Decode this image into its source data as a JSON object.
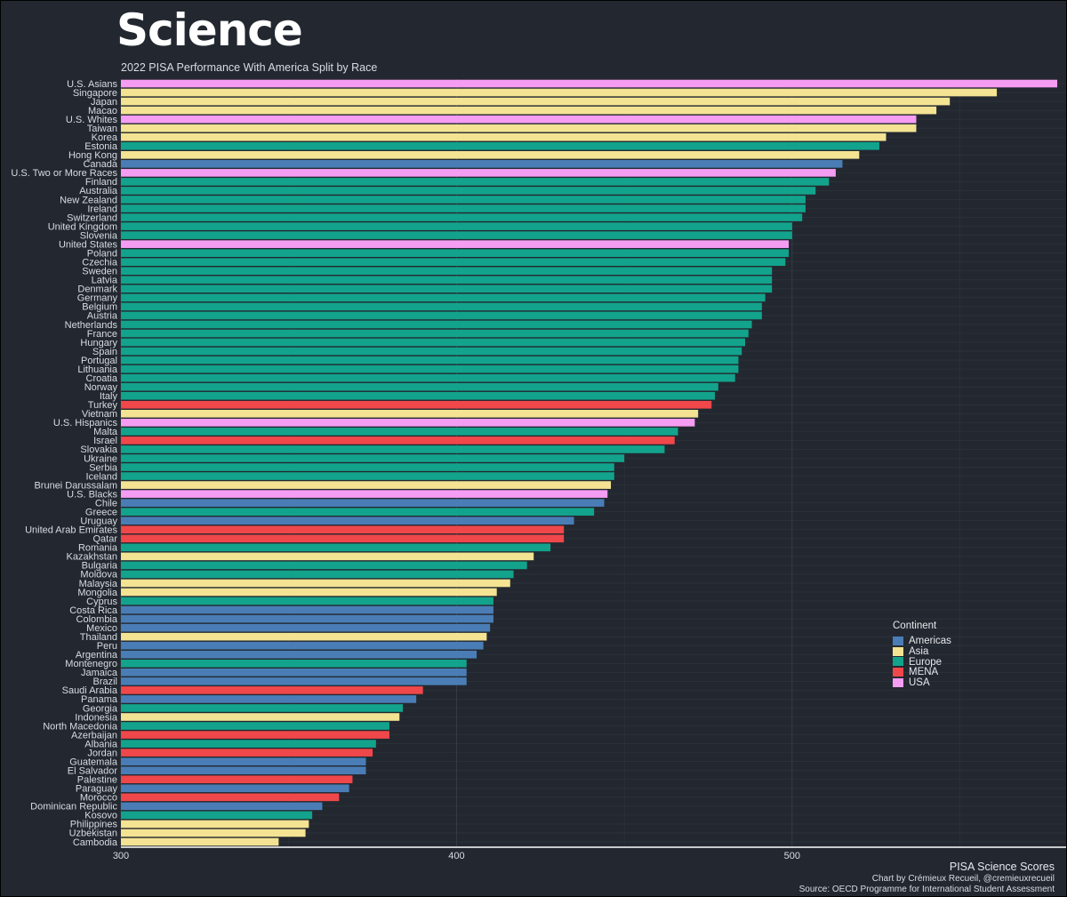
{
  "title": "Science",
  "subtitle": "2022 PISA Performance With America Split by Race",
  "legend_title": "Continent",
  "continent_colors": {
    "Americas": "#4a7db5",
    "Asia": "#f3e392",
    "Europe": "#13a38c",
    "MENA": "#f0474a",
    "USA": "#f59cf3"
  },
  "caption": {
    "main": "PISA Science Scores",
    "credit": "Chart by Crémieux Recueil, @cremieuxrecueil",
    "source": "Source: OECD Programme for International Student Assessment"
  },
  "chart_data": {
    "type": "bar",
    "orientation": "horizontal",
    "title": "Science",
    "subtitle": "2022 PISA Performance With America Split by Race",
    "xlabel": "",
    "ylabel": "",
    "xlim": [
      300,
      579
    ],
    "x_ticks": [
      300,
      400,
      500
    ],
    "grid": true,
    "legend_position": "right",
    "legend_entries": [
      "Americas",
      "Asia",
      "Europe",
      "MENA",
      "USA"
    ],
    "bars": [
      {
        "label": "U.S. Asians",
        "value": 579,
        "group": "USA"
      },
      {
        "label": "Singapore",
        "value": 561,
        "group": "Asia"
      },
      {
        "label": "Japan",
        "value": 547,
        "group": "Asia"
      },
      {
        "label": "Macao",
        "value": 543,
        "group": "Asia"
      },
      {
        "label": "U.S. Whites",
        "value": 537,
        "group": "USA"
      },
      {
        "label": "Taiwan",
        "value": 537,
        "group": "Asia"
      },
      {
        "label": "Korea",
        "value": 528,
        "group": "Asia"
      },
      {
        "label": "Estonia",
        "value": 526,
        "group": "Europe"
      },
      {
        "label": "Hong Kong",
        "value": 520,
        "group": "Asia"
      },
      {
        "label": "Canada",
        "value": 515,
        "group": "Americas"
      },
      {
        "label": "U.S. Two or More Races",
        "value": 513,
        "group": "USA"
      },
      {
        "label": "Finland",
        "value": 511,
        "group": "Europe"
      },
      {
        "label": "Australia",
        "value": 507,
        "group": "Europe"
      },
      {
        "label": "New Zealand",
        "value": 504,
        "group": "Europe"
      },
      {
        "label": "Ireland",
        "value": 504,
        "group": "Europe"
      },
      {
        "label": "Switzerland",
        "value": 503,
        "group": "Europe"
      },
      {
        "label": "United Kingdom",
        "value": 500,
        "group": "Europe"
      },
      {
        "label": "Slovenia",
        "value": 500,
        "group": "Europe"
      },
      {
        "label": "United States",
        "value": 499,
        "group": "USA"
      },
      {
        "label": "Poland",
        "value": 499,
        "group": "Europe"
      },
      {
        "label": "Czechia",
        "value": 498,
        "group": "Europe"
      },
      {
        "label": "Sweden",
        "value": 494,
        "group": "Europe"
      },
      {
        "label": "Latvia",
        "value": 494,
        "group": "Europe"
      },
      {
        "label": "Denmark",
        "value": 494,
        "group": "Europe"
      },
      {
        "label": "Germany",
        "value": 492,
        "group": "Europe"
      },
      {
        "label": "Belgium",
        "value": 491,
        "group": "Europe"
      },
      {
        "label": "Austria",
        "value": 491,
        "group": "Europe"
      },
      {
        "label": "Netherlands",
        "value": 488,
        "group": "Europe"
      },
      {
        "label": "France",
        "value": 487,
        "group": "Europe"
      },
      {
        "label": "Hungary",
        "value": 486,
        "group": "Europe"
      },
      {
        "label": "Spain",
        "value": 485,
        "group": "Europe"
      },
      {
        "label": "Portugal",
        "value": 484,
        "group": "Europe"
      },
      {
        "label": "Lithuania",
        "value": 484,
        "group": "Europe"
      },
      {
        "label": "Croatia",
        "value": 483,
        "group": "Europe"
      },
      {
        "label": "Norway",
        "value": 478,
        "group": "Europe"
      },
      {
        "label": "Italy",
        "value": 477,
        "group": "Europe"
      },
      {
        "label": "Turkey",
        "value": 476,
        "group": "MENA"
      },
      {
        "label": "Vietnam",
        "value": 472,
        "group": "Asia"
      },
      {
        "label": "U.S. Hispanics",
        "value": 471,
        "group": "USA"
      },
      {
        "label": "Malta",
        "value": 466,
        "group": "Europe"
      },
      {
        "label": "Israel",
        "value": 465,
        "group": "MENA"
      },
      {
        "label": "Slovakia",
        "value": 462,
        "group": "Europe"
      },
      {
        "label": "Ukraine",
        "value": 450,
        "group": "Europe"
      },
      {
        "label": "Serbia",
        "value": 447,
        "group": "Europe"
      },
      {
        "label": "Iceland",
        "value": 447,
        "group": "Europe"
      },
      {
        "label": "Brunei Darussalam",
        "value": 446,
        "group": "Asia"
      },
      {
        "label": "U.S. Blacks",
        "value": 445,
        "group": "USA"
      },
      {
        "label": "Chile",
        "value": 444,
        "group": "Americas"
      },
      {
        "label": "Greece",
        "value": 441,
        "group": "Europe"
      },
      {
        "label": "Uruguay",
        "value": 435,
        "group": "Americas"
      },
      {
        "label": "United Arab Emirates",
        "value": 432,
        "group": "MENA"
      },
      {
        "label": "Qatar",
        "value": 432,
        "group": "MENA"
      },
      {
        "label": "Romania",
        "value": 428,
        "group": "Europe"
      },
      {
        "label": "Kazakhstan",
        "value": 423,
        "group": "Asia"
      },
      {
        "label": "Bulgaria",
        "value": 421,
        "group": "Europe"
      },
      {
        "label": "Moldova",
        "value": 417,
        "group": "Europe"
      },
      {
        "label": "Malaysia",
        "value": 416,
        "group": "Asia"
      },
      {
        "label": "Mongolia",
        "value": 412,
        "group": "Asia"
      },
      {
        "label": "Cyprus",
        "value": 411,
        "group": "Europe"
      },
      {
        "label": "Costa Rica",
        "value": 411,
        "group": "Americas"
      },
      {
        "label": "Colombia",
        "value": 411,
        "group": "Americas"
      },
      {
        "label": "Mexico",
        "value": 410,
        "group": "Americas"
      },
      {
        "label": "Thailand",
        "value": 409,
        "group": "Asia"
      },
      {
        "label": "Peru",
        "value": 408,
        "group": "Americas"
      },
      {
        "label": "Argentina",
        "value": 406,
        "group": "Americas"
      },
      {
        "label": "Montenegro",
        "value": 403,
        "group": "Europe"
      },
      {
        "label": "Jamaica",
        "value": 403,
        "group": "Americas"
      },
      {
        "label": "Brazil",
        "value": 403,
        "group": "Americas"
      },
      {
        "label": "Saudi Arabia",
        "value": 390,
        "group": "MENA"
      },
      {
        "label": "Panama",
        "value": 388,
        "group": "Americas"
      },
      {
        "label": "Georgia",
        "value": 384,
        "group": "Europe"
      },
      {
        "label": "Indonesia",
        "value": 383,
        "group": "Asia"
      },
      {
        "label": "North Macedonia",
        "value": 380,
        "group": "Europe"
      },
      {
        "label": "Azerbaijan",
        "value": 380,
        "group": "MENA"
      },
      {
        "label": "Albania",
        "value": 376,
        "group": "Europe"
      },
      {
        "label": "Jordan",
        "value": 375,
        "group": "MENA"
      },
      {
        "label": "Guatemala",
        "value": 373,
        "group": "Americas"
      },
      {
        "label": "El Salvador",
        "value": 373,
        "group": "Americas"
      },
      {
        "label": "Palestine",
        "value": 369,
        "group": "MENA"
      },
      {
        "label": "Paraguay",
        "value": 368,
        "group": "Americas"
      },
      {
        "label": "Morocco",
        "value": 365,
        "group": "MENA"
      },
      {
        "label": "Dominican Republic",
        "value": 360,
        "group": "Americas"
      },
      {
        "label": "Kosovo",
        "value": 357,
        "group": "Europe"
      },
      {
        "label": "Philippines",
        "value": 356,
        "group": "Asia"
      },
      {
        "label": "Uzbekistan",
        "value": 355,
        "group": "Asia"
      },
      {
        "label": "Cambodia",
        "value": 347,
        "group": "Asia"
      }
    ]
  }
}
